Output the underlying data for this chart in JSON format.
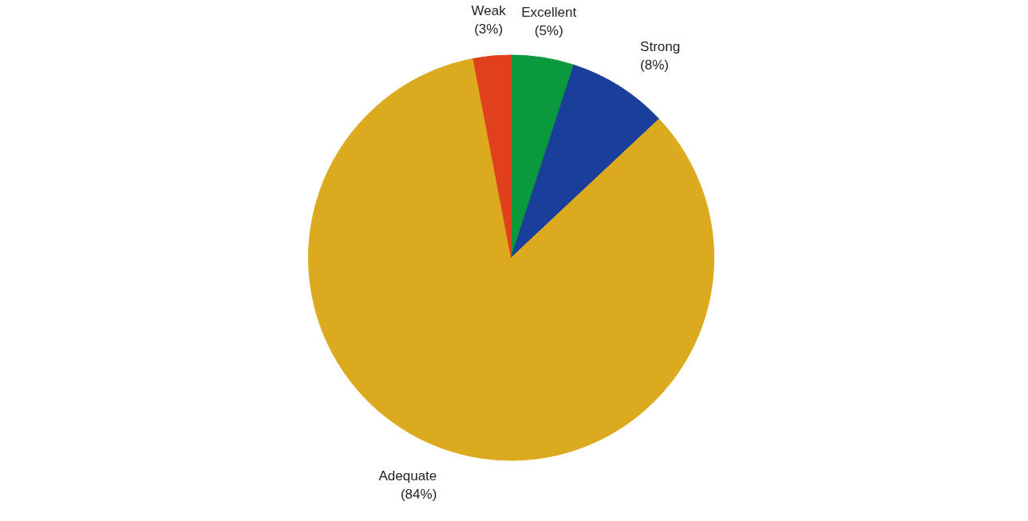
{
  "chart_data": {
    "type": "pie",
    "categories": [
      "Excellent",
      "Strong",
      "Adequate",
      "Weak"
    ],
    "values": [
      5,
      8,
      84,
      3
    ],
    "colors": [
      "#0a9a3c",
      "#1a3f9a",
      "#dcaa1e",
      "#e0401c"
    ],
    "value_labels": [
      "(5%)",
      "(8%)",
      "(84%)",
      "(3%)"
    ]
  }
}
